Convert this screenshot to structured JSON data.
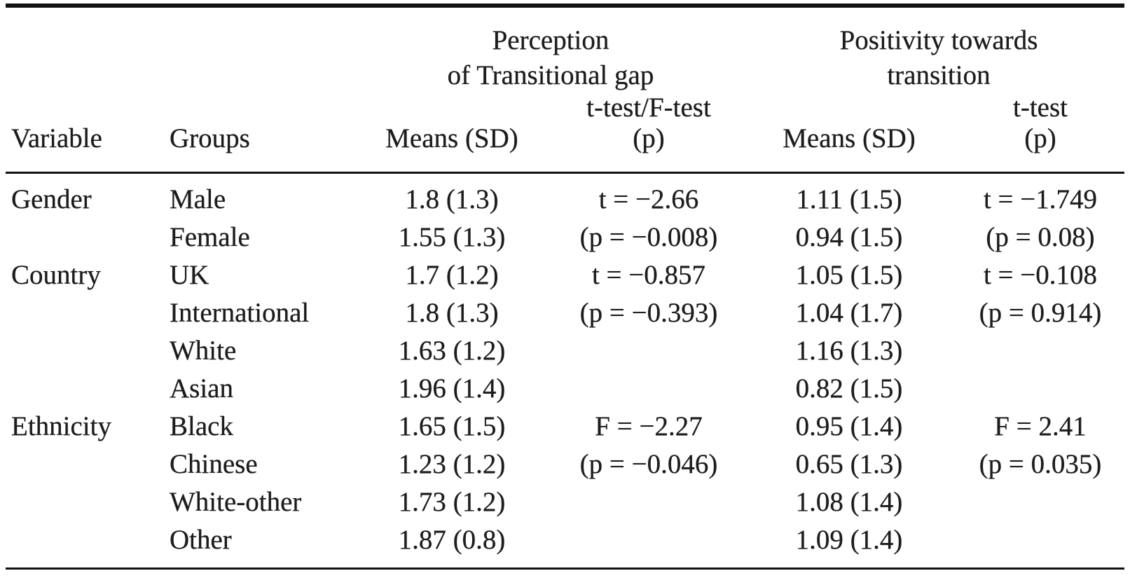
{
  "colors": {
    "text": "#1c1c1c",
    "rule": "#111111",
    "background": "#ffffff"
  },
  "table": {
    "span_headers": [
      {
        "line1": "Perception",
        "line2": "of Transitional gap"
      },
      {
        "line1": "Positivity towards",
        "line2": "transition"
      }
    ],
    "sub_headers": {
      "test1": "t-test/F-test",
      "test1_p": "(p)",
      "test2": "t-test",
      "test2_p": "(p)"
    },
    "col_headers": {
      "variable": "Variable",
      "groups": "Groups",
      "means1": "Means (SD)",
      "means2": "Means (SD)"
    },
    "rows": [
      {
        "variable": "Gender",
        "group": "Male",
        "means1": "1.8 (1.3)",
        "test1": "t = −2.66",
        "means2": "1.11 (1.5)",
        "test2": "t = −1.749"
      },
      {
        "variable": "",
        "group": "Female",
        "means1": "1.55 (1.3)",
        "test1": "(p = −0.008)",
        "means2": "0.94 (1.5)",
        "test2": "(p = 0.08)"
      },
      {
        "variable": "Country",
        "group": "UK",
        "means1": "1.7 (1.2)",
        "test1": "t = −0.857",
        "means2": "1.05 (1.5)",
        "test2": "t = −0.108"
      },
      {
        "variable": "",
        "group": "International",
        "means1": "1.8 (1.3)",
        "test1": "(p = −0.393)",
        "means2": "1.04 (1.7)",
        "test2": "(p = 0.914)"
      },
      {
        "variable": "",
        "group": "White",
        "means1": "1.63 (1.2)",
        "test1": "",
        "means2": "1.16 (1.3)",
        "test2": ""
      },
      {
        "variable": "",
        "group": "Asian",
        "means1": "1.96 (1.4)",
        "test1": "",
        "means2": "0.82 (1.5)",
        "test2": ""
      },
      {
        "variable": "Ethnicity",
        "group": "Black",
        "means1": "1.65 (1.5)",
        "test1": "F = −2.27",
        "means2": "0.95 (1.4)",
        "test2": "F = 2.41"
      },
      {
        "variable": "",
        "group": "Chinese",
        "means1": "1.23 (1.2)",
        "test1": "(p = −0.046)",
        "means2": "0.65 (1.3)",
        "test2": "(p = 0.035)"
      },
      {
        "variable": "",
        "group": "White-other",
        "means1": "1.73 (1.2)",
        "test1": "",
        "means2": "1.08 (1.4)",
        "test2": ""
      },
      {
        "variable": "",
        "group": "Other",
        "means1": "1.87 (0.8)",
        "test1": "",
        "means2": "1.09 (1.4)",
        "test2": ""
      }
    ]
  }
}
